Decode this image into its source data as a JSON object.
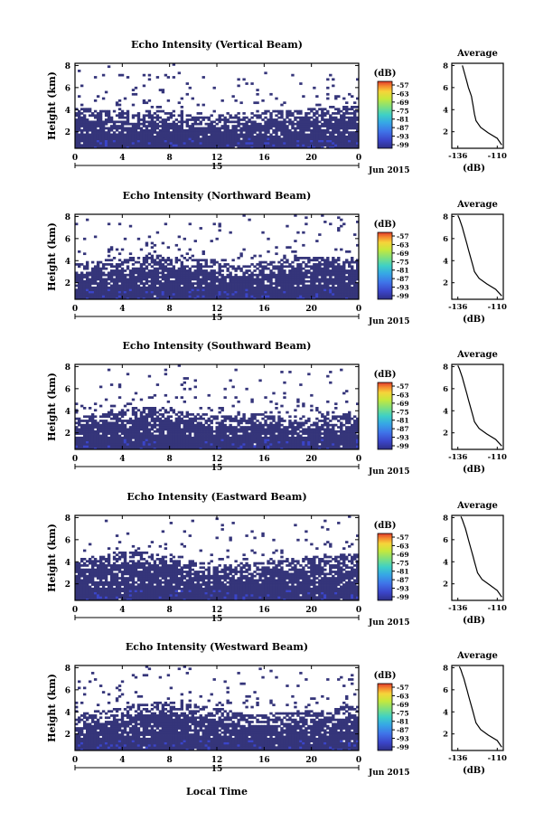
{
  "figure": {
    "shared_xlabel": "Local Time",
    "date_label": "Jun 2015",
    "colorbar_unit": "(dB)",
    "colorbar_ticks": [
      "-57",
      "-63",
      "-69",
      "-75",
      "-81",
      "-87",
      "-93",
      "-99"
    ],
    "colorbar_colors": [
      "#2e2f86",
      "#3b45c9",
      "#3f73e8",
      "#36a6e6",
      "#3ed0c6",
      "#7fe07e",
      "#c6e83c",
      "#f6d43a",
      "#f58a2f",
      "#e0392b"
    ]
  },
  "chart_data": [
    {
      "type": "heatmap",
      "title": "Echo Intensity (Vertical Beam)",
      "xlabel": "",
      "ylabel": "Height (km)",
      "x_ticks": [
        "0",
        "4",
        "8",
        "12",
        "16",
        "20",
        "0"
      ],
      "x_day_label": "15",
      "xlim": [
        0,
        24
      ],
      "y_ticks": [
        "2",
        "4",
        "6",
        "8"
      ],
      "ylim": [
        0.5,
        8.2
      ],
      "colorbar_range": [
        -99,
        -57
      ],
      "echo_top_km": [
        3.8,
        3.7,
        3.6,
        3.5,
        3.6,
        3.4,
        3.3,
        3.5,
        3.6,
        3.3,
        3.0,
        3.0,
        3.1,
        3.2,
        3.3,
        3.4,
        3.5,
        3.6,
        3.5,
        3.6,
        3.7,
        3.8,
        3.9,
        4.0
      ],
      "sparse_top_km": 7.5
    },
    {
      "type": "heatmap",
      "title": "Echo Intensity (Northward Beam)",
      "xlabel": "",
      "ylabel": "Height (km)",
      "x_ticks": [
        "0",
        "4",
        "8",
        "12",
        "16",
        "20",
        "0"
      ],
      "x_day_label": "15",
      "xlim": [
        0,
        24
      ],
      "y_ticks": [
        "2",
        "4",
        "6",
        "8"
      ],
      "ylim": [
        0.5,
        8.2
      ],
      "colorbar_range": [
        -99,
        -57
      ],
      "echo_top_km": [
        3.4,
        3.5,
        3.6,
        3.7,
        3.8,
        3.9,
        4.0,
        4.1,
        4.0,
        3.9,
        3.8,
        3.7,
        3.5,
        3.3,
        3.2,
        3.3,
        3.4,
        3.6,
        3.8,
        3.9,
        4.0,
        4.0,
        3.9,
        3.8
      ],
      "sparse_top_km": 7.8
    },
    {
      "type": "heatmap",
      "title": "Echo Intensity (Southward Beam)",
      "xlabel": "",
      "ylabel": "Height (km)",
      "x_ticks": [
        "0",
        "4",
        "8",
        "12",
        "16",
        "20",
        "0"
      ],
      "x_day_label": "15",
      "xlim": [
        0,
        24
      ],
      "y_ticks": [
        "2",
        "4",
        "6",
        "8"
      ],
      "ylim": [
        0.5,
        8.2
      ],
      "colorbar_range": [
        -99,
        -57
      ],
      "echo_top_km": [
        3.0,
        3.2,
        3.3,
        3.5,
        3.7,
        3.9,
        4.0,
        3.9,
        3.8,
        3.6,
        3.4,
        3.3,
        3.2,
        3.1,
        3.2,
        3.3,
        3.4,
        3.3,
        3.2,
        3.1,
        3.0,
        3.1,
        3.2,
        3.3
      ],
      "sparse_top_km": 7.2
    },
    {
      "type": "heatmap",
      "title": "Echo Intensity (Eastward Beam)",
      "xlabel": "",
      "ylabel": "Height (km)",
      "x_ticks": [
        "0",
        "4",
        "8",
        "12",
        "16",
        "20",
        "0"
      ],
      "x_day_label": "15",
      "xlim": [
        0,
        24
      ],
      "y_ticks": [
        "2",
        "4",
        "6",
        "8"
      ],
      "ylim": [
        0.5,
        8.2
      ],
      "colorbar_range": [
        -99,
        -57
      ],
      "echo_top_km": [
        3.8,
        4.0,
        4.1,
        4.3,
        4.5,
        4.6,
        4.5,
        4.3,
        4.1,
        3.9,
        3.7,
        3.5,
        3.4,
        3.3,
        3.3,
        3.5,
        3.7,
        3.8,
        3.9,
        4.0,
        4.1,
        4.2,
        4.3,
        4.4
      ],
      "sparse_top_km": 7.9
    },
    {
      "type": "heatmap",
      "title": "Echo Intensity (Westward Beam)",
      "xlabel": "",
      "ylabel": "Height (km)",
      "x_ticks": [
        "0",
        "4",
        "8",
        "12",
        "16",
        "20",
        "0"
      ],
      "x_day_label": "15",
      "xlim": [
        0,
        24
      ],
      "y_ticks": [
        "2",
        "4",
        "6",
        "8"
      ],
      "ylim": [
        0.5,
        8.2
      ],
      "colorbar_range": [
        -99,
        -57
      ],
      "echo_top_km": [
        3.4,
        3.5,
        3.6,
        3.8,
        4.0,
        4.2,
        4.4,
        4.5,
        4.6,
        4.5,
        4.3,
        4.1,
        3.9,
        3.7,
        3.5,
        3.4,
        3.4,
        3.5,
        3.6,
        3.7,
        3.8,
        3.9,
        4.0,
        4.1
      ],
      "sparse_top_km": 7.6
    },
    {
      "type": "line",
      "title": "Average",
      "xlabel": "(dB)",
      "x_ticks": [
        "-136",
        "-110"
      ],
      "xlim": [
        -140,
        -106
      ],
      "y_ticks": [
        "2",
        "4",
        "6",
        "8"
      ],
      "ylim": [
        0.5,
        8.2
      ],
      "series": [
        {
          "x": [
            -107,
            -110,
            -116,
            -121,
            -124,
            -125,
            -125.5,
            -126,
            -126.5,
            -127,
            -128,
            -129,
            -130,
            -131,
            -132,
            -133
          ],
          "y": [
            0.8,
            1.4,
            1.9,
            2.4,
            3.0,
            3.6,
            4.0,
            4.4,
            4.8,
            5.2,
            5.6,
            6.0,
            6.5,
            7.0,
            7.5,
            8.0
          ]
        }
      ]
    },
    {
      "type": "line",
      "title": "Average",
      "xlabel": "(dB)",
      "x_ticks": [
        "-136",
        "-110"
      ],
      "xlim": [
        -140,
        -106
      ],
      "y_ticks": [
        "2",
        "4",
        "6",
        "8"
      ],
      "ylim": [
        0.5,
        8.2
      ],
      "series": [
        {
          "x": [
            -107,
            -111,
            -117,
            -122,
            -125,
            -126,
            -127,
            -128,
            -129,
            -130,
            -131,
            -132,
            -133,
            -134,
            -135,
            -136
          ],
          "y": [
            0.8,
            1.4,
            1.9,
            2.4,
            3.0,
            3.5,
            4.0,
            4.5,
            5.0,
            5.5,
            6.0,
            6.5,
            7.0,
            7.4,
            7.8,
            8.1
          ]
        }
      ]
    },
    {
      "type": "line",
      "title": "Average",
      "xlabel": "(dB)",
      "x_ticks": [
        "-136",
        "-110"
      ],
      "xlim": [
        -140,
        -106
      ],
      "y_ticks": [
        "2",
        "4",
        "6",
        "8"
      ],
      "ylim": [
        0.5,
        8.2
      ],
      "series": [
        {
          "x": [
            -107,
            -111,
            -117,
            -122,
            -125,
            -126,
            -127,
            -128,
            -129,
            -130,
            -131,
            -132,
            -133,
            -134,
            -135,
            -136
          ],
          "y": [
            0.8,
            1.4,
            1.9,
            2.4,
            3.0,
            3.5,
            4.0,
            4.5,
            5.0,
            5.5,
            6.0,
            6.5,
            7.0,
            7.4,
            7.8,
            8.1
          ]
        }
      ]
    },
    {
      "type": "line",
      "title": "Average",
      "xlabel": "(dB)",
      "x_ticks": [
        "-136",
        "-110"
      ],
      "xlim": [
        -140,
        -106
      ],
      "y_ticks": [
        "2",
        "4",
        "6",
        "8"
      ],
      "ylim": [
        0.5,
        8.2
      ],
      "series": [
        {
          "x": [
            -107,
            -110,
            -115,
            -120,
            -123,
            -124,
            -125,
            -126,
            -127,
            -128,
            -129,
            -130,
            -131,
            -132,
            -133,
            -134
          ],
          "y": [
            0.8,
            1.4,
            1.9,
            2.4,
            3.0,
            3.5,
            4.0,
            4.5,
            5.0,
            5.5,
            6.0,
            6.5,
            7.0,
            7.4,
            7.8,
            8.1
          ]
        }
      ]
    },
    {
      "type": "line",
      "title": "Average",
      "xlabel": "(dB)",
      "x_ticks": [
        "-136",
        "-110"
      ],
      "xlim": [
        -140,
        -106
      ],
      "y_ticks": [
        "2",
        "4",
        "6",
        "8"
      ],
      "ylim": [
        0.5,
        8.2
      ],
      "series": [
        {
          "x": [
            -107,
            -110,
            -116,
            -121,
            -124,
            -125,
            -126,
            -127,
            -128,
            -129,
            -130,
            -131,
            -132,
            -133,
            -134,
            -135
          ],
          "y": [
            0.8,
            1.4,
            1.9,
            2.4,
            3.0,
            3.5,
            4.0,
            4.5,
            5.0,
            5.5,
            6.0,
            6.5,
            7.0,
            7.4,
            7.8,
            8.1
          ]
        }
      ]
    }
  ]
}
